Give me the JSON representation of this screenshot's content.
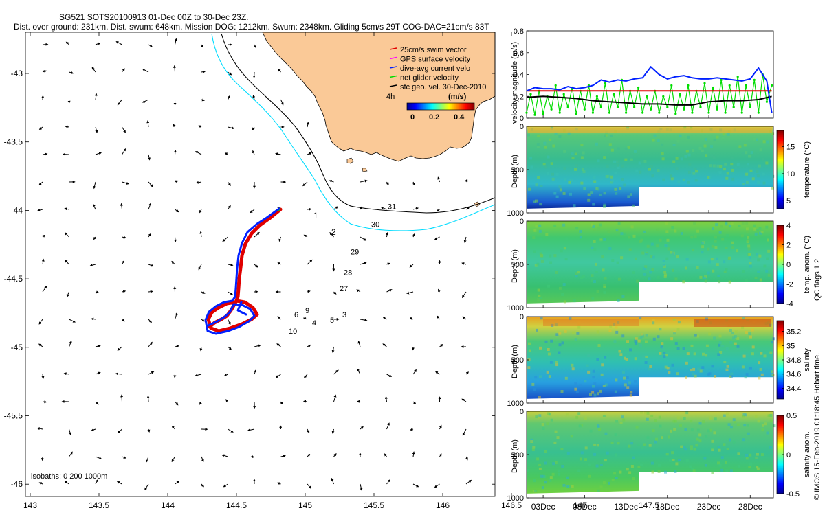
{
  "header": {
    "line1": "SG521 SOTS20100913 01-Dec 00Z to 30-Dec 23Z.",
    "line2": "Dist. over ground: 231km. Dist. swum: 648km. Mission DOG: 1212km. Swum: 2348km. Gliding 5cm/s 29T COG-DAC=21cm/s 83T"
  },
  "colors": {
    "land": "#fac997",
    "isobath200": "#000000",
    "isobath1000": "#00dcff",
    "swim_vector": "#e00000",
    "gps_velocity": "#ff00ff",
    "dive_avg": "#0020ff",
    "net_glider": "#00dd00",
    "sfc_geo": "#000000"
  },
  "map": {
    "lon_ticks": [
      "143",
      "143.5",
      "144",
      "144.5",
      "145",
      "145.5",
      "146",
      "146.5",
      "147",
      "147.5"
    ],
    "lat_ticks": [
      "-43",
      "-43.5",
      "-44",
      "-44.5",
      "-45",
      "-45.5",
      "-46"
    ],
    "legend": [
      {
        "label": "25cm/s swim vector",
        "color": "#e00000",
        "symbol": "arrow"
      },
      {
        "label": "GPS surface velocity",
        "color": "#ff00ff",
        "symbol": "arrow"
      },
      {
        "label": "dive-avg current velo",
        "color": "#0020ff",
        "symbol": "arrow"
      },
      {
        "label": "net glider velocity",
        "color": "#00dd00",
        "symbol": "arrow"
      },
      {
        "label": "sfc geo. vel. 30-Dec-2010",
        "color": "#000000",
        "symbol": "arrow"
      }
    ],
    "colorbar_title": "(m/s)",
    "colorbar_side_label": "4h",
    "colorbar_ticks": [
      "0",
      "0.2",
      "0.4"
    ],
    "isobath_labels": [
      "1",
      "2"
    ],
    "isobaths_note": "isobaths: 0   200  1000m",
    "day_labels": [
      {
        "text": "31",
        "lon": 145.6,
        "lat": -43.99
      },
      {
        "text": "30",
        "lon": 145.48,
        "lat": -44.12
      },
      {
        "text": "29",
        "lon": 145.33,
        "lat": -44.32
      },
      {
        "text": "28",
        "lon": 145.28,
        "lat": -44.47
      },
      {
        "text": "27",
        "lon": 145.25,
        "lat": -44.59
      },
      {
        "text": "9",
        "lon": 145.0,
        "lat": -44.75
      },
      {
        "text": "3",
        "lon": 145.27,
        "lat": -44.78
      },
      {
        "text": "6",
        "lon": 144.92,
        "lat": -44.78
      },
      {
        "text": "10",
        "lon": 144.88,
        "lat": -44.9
      },
      {
        "text": "4",
        "lon": 145.05,
        "lat": -44.84
      },
      {
        "text": "5",
        "lon": 145.18,
        "lat": -44.82
      }
    ]
  },
  "chart_data": [
    {
      "type": "line",
      "title": "",
      "ylabel": "velocity magnitude (m/s)",
      "ylim": [
        0,
        0.8
      ],
      "yticks": [
        "0",
        "0.2",
        "0.4",
        "0.6",
        "0.8"
      ],
      "x_unit": "day of December 2010",
      "series": [
        {
          "name": "dive-avg current",
          "color": "#0020ff",
          "x": [
            1,
            2,
            3,
            4,
            5,
            6,
            7,
            8,
            9,
            10,
            11,
            12,
            13,
            14,
            15,
            16,
            17,
            18,
            19,
            20,
            21,
            22,
            23,
            24,
            25,
            26,
            27,
            28,
            29,
            30,
            30.6
          ],
          "values": [
            0.25,
            0.28,
            0.27,
            0.27,
            0.26,
            0.29,
            0.27,
            0.28,
            0.3,
            0.35,
            0.33,
            0.35,
            0.34,
            0.36,
            0.37,
            0.47,
            0.4,
            0.36,
            0.38,
            0.39,
            0.37,
            0.36,
            0.36,
            0.37,
            0.36,
            0.35,
            0.34,
            0.36,
            0.46,
            0.34,
            0.05
          ]
        },
        {
          "name": "sfc geo. vel.",
          "color": "#000000",
          "x": [
            1,
            3,
            5,
            7,
            9,
            11,
            13,
            15,
            17,
            19,
            21,
            23,
            25,
            27,
            29,
            30.6
          ],
          "values": [
            0.19,
            0.2,
            0.19,
            0.18,
            0.16,
            0.15,
            0.14,
            0.13,
            0.13,
            0.12,
            0.12,
            0.15,
            0.16,
            0.16,
            0.17,
            0.2
          ]
        },
        {
          "name": "25cm/s swim speed",
          "color": "#e00000",
          "x": [
            1,
            30.6
          ],
          "values": [
            0.25,
            0.25
          ]
        },
        {
          "name": "net glider velocity",
          "color": "#00dd00",
          "x": [
            1,
            1.5,
            2,
            2.5,
            3,
            3.5,
            4,
            4.5,
            5,
            5.5,
            6,
            6.5,
            7,
            7.5,
            8,
            8.5,
            9,
            9.5,
            10,
            10.5,
            11,
            11.5,
            12,
            12.5,
            13,
            13.5,
            14,
            14.5,
            15,
            15.5,
            16,
            16.5,
            17,
            17.5,
            18,
            18.5,
            19,
            19.5,
            20,
            20.5,
            21,
            21.5,
            22,
            22.5,
            23,
            23.5,
            24,
            24.5,
            25,
            25.5,
            26,
            26.5,
            27,
            27.5,
            28,
            28.5,
            29,
            29.5,
            30,
            30.6
          ],
          "values": [
            0.05,
            0.22,
            0.03,
            0.25,
            0.04,
            0.2,
            0.08,
            0.3,
            0.05,
            0.22,
            0.1,
            0.28,
            0.04,
            0.25,
            0.08,
            0.3,
            0.05,
            0.2,
            0.1,
            0.32,
            0.05,
            0.22,
            0.1,
            0.35,
            0.05,
            0.25,
            0.1,
            0.28,
            0.05,
            0.2,
            0.08,
            0.25,
            0.05,
            0.2,
            0.1,
            0.3,
            0.04,
            0.22,
            0.08,
            0.3,
            0.05,
            0.25,
            0.1,
            0.32,
            0.05,
            0.28,
            0.08,
            0.35,
            0.05,
            0.3,
            0.1,
            0.38,
            0.05,
            0.3,
            0.1,
            0.35,
            0.05,
            0.4,
            0.15,
            0.3
          ]
        }
      ]
    },
    {
      "type": "heatmap",
      "ylabel": "Depth (m)",
      "yticks": [
        "0",
        "500",
        "1000"
      ],
      "ylim": [
        1000,
        0
      ],
      "colorbar_label": "temperature (°C)",
      "colorbar_ticks": [
        "5",
        "10",
        "15"
      ],
      "colorbar_range": [
        3.5,
        18
      ]
    },
    {
      "type": "heatmap",
      "ylabel": "Depth (m)",
      "yticks": [
        "0",
        "500",
        "1000"
      ],
      "ylim": [
        1000,
        0
      ],
      "colorbar_label": "temp. anom. (°C)",
      "colorbar_ticks": [
        "4",
        "2",
        "0",
        "-2",
        "-4"
      ],
      "colorbar_range": [
        -4,
        4
      ]
    },
    {
      "type": "heatmap",
      "ylabel": "Depth (m)",
      "yticks": [
        "0",
        "500",
        "1000"
      ],
      "ylim": [
        1000,
        0
      ],
      "colorbar_label": "salinity",
      "colorbar_ticks": [
        "35.2",
        "35",
        "34.8",
        "34.6",
        "34.4"
      ],
      "colorbar_range": [
        34.25,
        35.35
      ]
    },
    {
      "type": "heatmap",
      "ylabel": "Depth (m)",
      "yticks": [
        "0",
        "500",
        "1000"
      ],
      "ylim": [
        1000,
        0
      ],
      "colorbar_label": "salinity anom.",
      "colorbar_ticks": [
        "0.5",
        "0",
        "-0.5"
      ],
      "colorbar_range": [
        -0.5,
        0.5
      ],
      "xticks": [
        "03Dec",
        "08Dec",
        "13Dec",
        "18Dec",
        "23Dec",
        "28Dec"
      ]
    }
  ],
  "side_note": "QC flags 1  2",
  "copyright": "© IMOS 15-Feb-2019 01:18:45 Hobart time."
}
